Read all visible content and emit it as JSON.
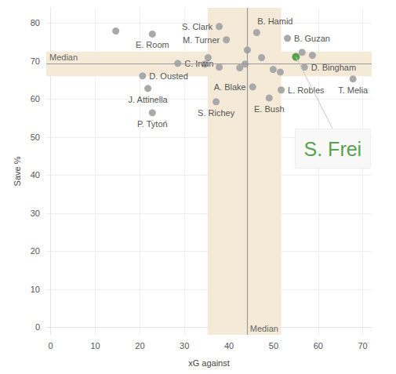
{
  "chart_data": {
    "type": "scatter",
    "xlabel": "xG against",
    "ylabel": "Save %",
    "xlim": [
      -1,
      72
    ],
    "ylim": [
      -2,
      84
    ],
    "xticks": [
      0,
      10,
      20,
      30,
      40,
      50,
      60,
      70
    ],
    "yticks": [
      0,
      10,
      20,
      30,
      40,
      50,
      60,
      70,
      80
    ],
    "grid": true,
    "color": "#a9a9a9",
    "points": [
      {
        "x": 14.6,
        "y": 77.9,
        "label": null
      },
      {
        "x": 22.8,
        "y": 77.1,
        "label": "E. Room"
      },
      {
        "x": 37.8,
        "y": 79.1,
        "label": "S. Clark"
      },
      {
        "x": 46.2,
        "y": 77.5,
        "label": "B. Hamid"
      },
      {
        "x": 39.4,
        "y": 75.6,
        "label": "M. Turner"
      },
      {
        "x": 53.1,
        "y": 76.0,
        "label": "B. Guzan"
      },
      {
        "x": 44.1,
        "y": 72.9,
        "label": null
      },
      {
        "x": 47.3,
        "y": 70.9,
        "label": null
      },
      {
        "x": 35.3,
        "y": 70.9,
        "label": null
      },
      {
        "x": 28.5,
        "y": 69.4,
        "label": "C. Irwin"
      },
      {
        "x": 34.6,
        "y": 69.2,
        "label": null
      },
      {
        "x": 37.8,
        "y": 68.4,
        "label": null
      },
      {
        "x": 42.4,
        "y": 68.2,
        "label": null
      },
      {
        "x": 43.6,
        "y": 69.2,
        "label": null
      },
      {
        "x": 49.9,
        "y": 67.8,
        "label": null
      },
      {
        "x": 51.5,
        "y": 67.1,
        "label": null
      },
      {
        "x": 56.4,
        "y": 72.3,
        "label": null
      },
      {
        "x": 58.7,
        "y": 71.5,
        "label": null
      },
      {
        "x": 56.9,
        "y": 68.4,
        "label": "D. Bingham"
      },
      {
        "x": 67.8,
        "y": 65.3,
        "label": "T. Melia"
      },
      {
        "x": 20.6,
        "y": 66.1,
        "label": "D. Ousted"
      },
      {
        "x": 21.8,
        "y": 62.8,
        "label": "J. Attinella"
      },
      {
        "x": 22.8,
        "y": 56.4,
        "label": "P. Tytoń"
      },
      {
        "x": 45.3,
        "y": 63.2,
        "label": "A. Blake"
      },
      {
        "x": 51.7,
        "y": 62.4,
        "label": "L. Robles"
      },
      {
        "x": 49.0,
        "y": 60.3,
        "label": "E. Bush"
      },
      {
        "x": 37.1,
        "y": 59.3,
        "label": "S. Richey"
      }
    ],
    "highlight": {
      "x": 55.0,
      "y": 71.1,
      "label": "S. Frei",
      "color": "#59a14f"
    },
    "median_label": "Median",
    "median_x": 44,
    "median_y": 69.3,
    "x_band": [
      35.2,
      51.7
    ],
    "y_band": [
      66,
      72.5
    ]
  }
}
